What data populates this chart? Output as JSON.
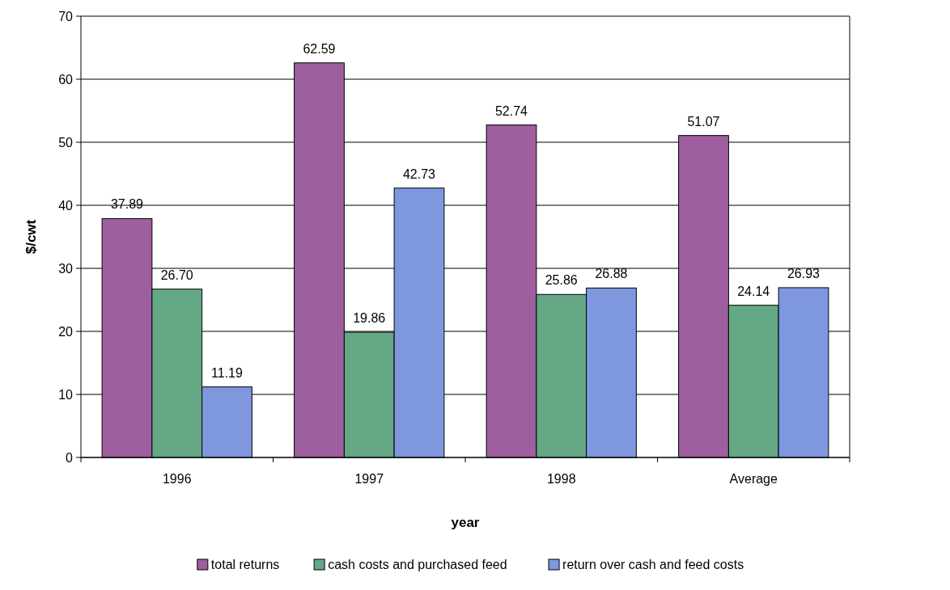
{
  "chart_data": {
    "type": "bar",
    "xlabel": "year",
    "ylabel": "$/cwt",
    "categories": [
      "1996",
      "1997",
      "1998",
      "Average"
    ],
    "series": [
      {
        "name": "total returns",
        "color": "#9e5f9e",
        "values": [
          37.89,
          62.59,
          52.74,
          51.07
        ],
        "value_labels": [
          "37.89",
          "62.59",
          "52.74",
          "51.07"
        ]
      },
      {
        "name": "cash costs and purchased feed",
        "color": "#64a885",
        "values": [
          26.7,
          19.86,
          25.86,
          24.14
        ],
        "value_labels": [
          "26.70",
          "19.86",
          "25.86",
          "24.14"
        ]
      },
      {
        "name": "return over cash and feed costs",
        "color": "#7f97de",
        "values": [
          11.19,
          42.73,
          26.88,
          26.93
        ],
        "value_labels": [
          "11.19",
          "42.73",
          "26.88",
          "26.93"
        ]
      }
    ],
    "ylim": [
      0,
      70
    ],
    "yticks": [
      0,
      10,
      20,
      30,
      40,
      50,
      60,
      70
    ],
    "grid": "y",
    "legend": "bottom"
  }
}
